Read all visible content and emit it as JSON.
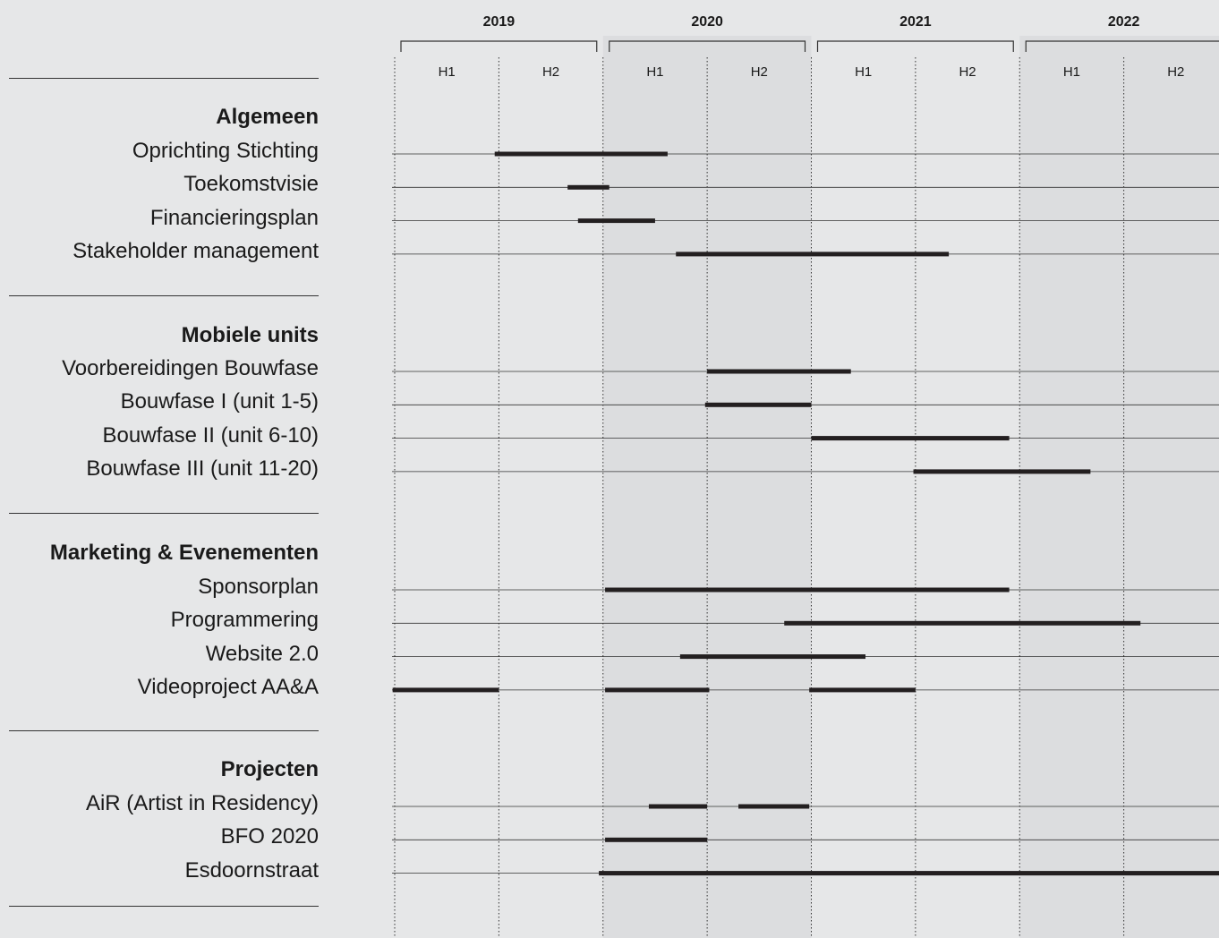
{
  "chart_data": {
    "type": "gantt",
    "years": [
      "2019",
      "2020",
      "2021",
      "2022"
    ],
    "halves": [
      "H1",
      "H2"
    ],
    "x_range": [
      2019.0,
      2023.0
    ],
    "shaded_years": [
      "2020",
      "2022"
    ],
    "groups": [
      {
        "title": "Algemeen",
        "rows": [
          {
            "label": "Oprichting Stichting",
            "bars": [
              [
                2019.48,
                2020.31
              ]
            ]
          },
          {
            "label": "Toekomstvisie",
            "bars": [
              [
                2019.83,
                2020.03
              ]
            ]
          },
          {
            "label": "Financieringsplan",
            "bars": [
              [
                2019.88,
                2020.25
              ]
            ]
          },
          {
            "label": "Stakeholder management",
            "bars": [
              [
                2020.35,
                2021.66
              ]
            ]
          }
        ]
      },
      {
        "title": "Mobiele units",
        "rows": [
          {
            "label": "Voorbereidingen Bouwfase",
            "bars": [
              [
                2020.5,
                2021.19
              ]
            ]
          },
          {
            "label": "Bouwfase I (unit 1-5)",
            "bars": [
              [
                2020.49,
                2021.0
              ]
            ]
          },
          {
            "label": "Bouwfase II (unit 6-10)",
            "bars": [
              [
                2021.0,
                2021.95
              ]
            ]
          },
          {
            "label": "Bouwfase III (unit 11-20)",
            "bars": [
              [
                2021.49,
                2022.34
              ]
            ]
          }
        ]
      },
      {
        "title": "Marketing & Evenementen",
        "rows": [
          {
            "label": "Sponsorplan",
            "bars": [
              [
                2020.01,
                2021.95
              ]
            ]
          },
          {
            "label": "Programmering",
            "bars": [
              [
                2020.87,
                2022.58
              ]
            ]
          },
          {
            "label": "Website 2.0",
            "bars": [
              [
                2020.37,
                2021.26
              ]
            ]
          },
          {
            "label": "Videoproject AA&A",
            "bars": [
              [
                2018.99,
                2019.5
              ],
              [
                2020.01,
                2020.51
              ],
              [
                2020.99,
                2021.5
              ]
            ]
          }
        ]
      },
      {
        "title": "Projecten",
        "rows": [
          {
            "label": "AiR (Artist in Residency)",
            "bars": [
              [
                2020.22,
                2020.5
              ],
              [
                2020.65,
                2020.99
              ]
            ]
          },
          {
            "label": "BFO 2020",
            "bars": [
              [
                2020.01,
                2020.5
              ]
            ]
          },
          {
            "label": "Esdoornstraat",
            "bars": [
              [
                2019.98,
                2023.0
              ]
            ]
          }
        ]
      }
    ]
  }
}
